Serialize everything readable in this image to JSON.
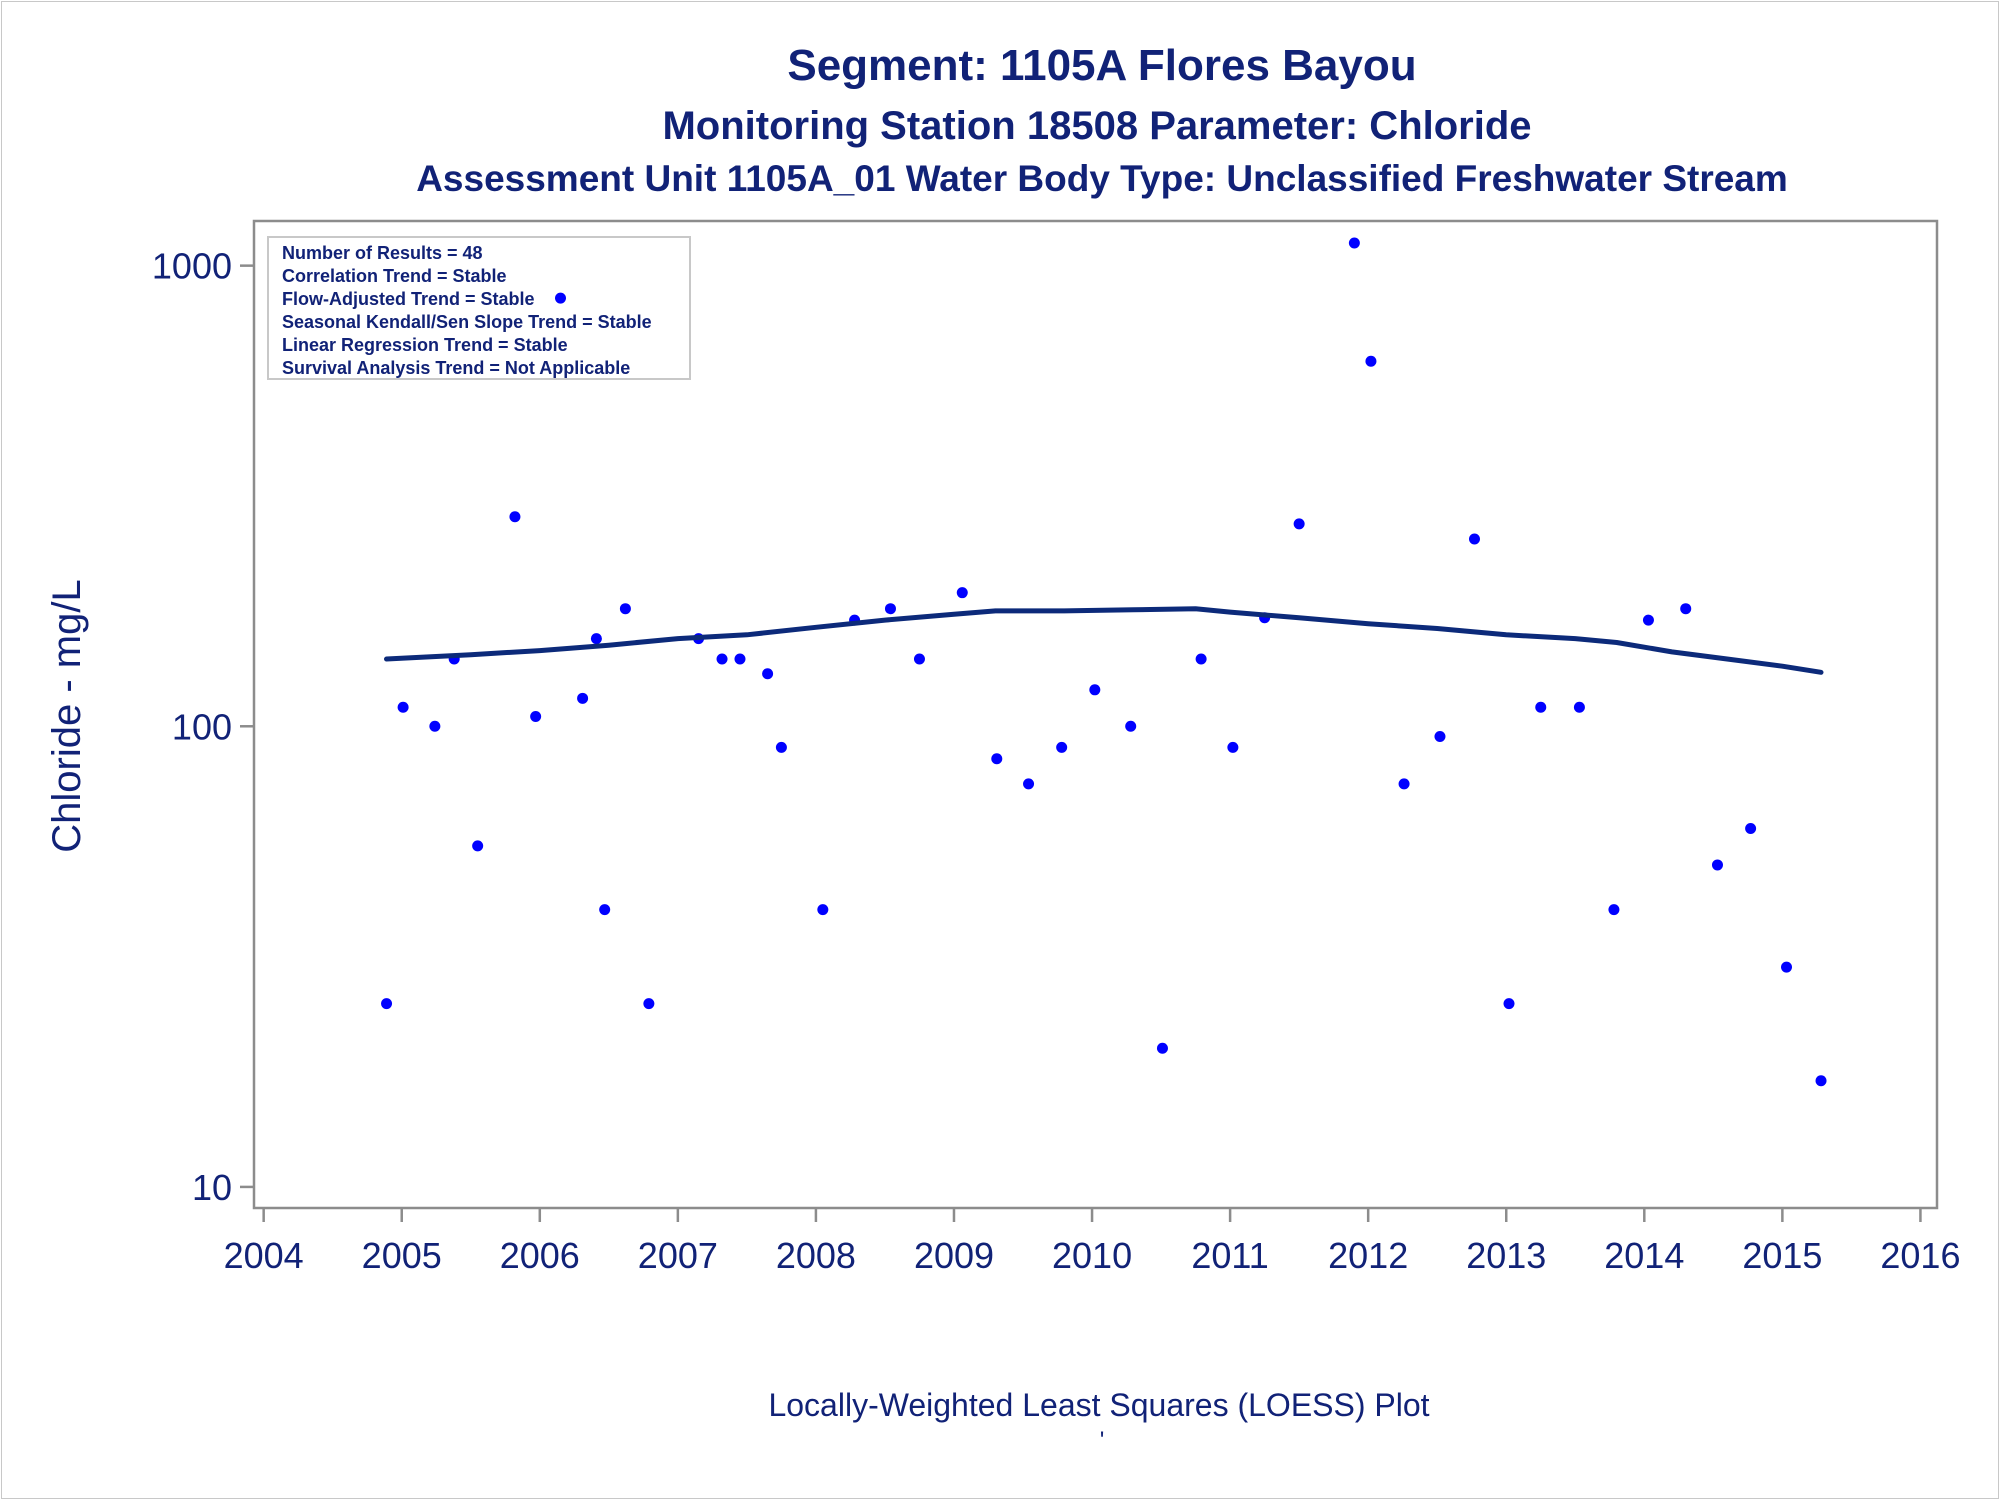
{
  "colors": {
    "text": "#112277",
    "points": "#0000ff",
    "loess": "#0c2a7a",
    "axis": "#8c8c8c",
    "inset_border": "#c8c8c8"
  },
  "chart_data": {
    "type": "scatter",
    "title": "Segment: 1105A  Flores Bayou",
    "subtitle": "Monitoring Station 18508 Parameter: Chloride",
    "subtitle2": "Assessment Unit 1105A_01   Water Body Type: Unclassified Freshwater Stream",
    "ylabel": "Chloride - mg/L",
    "xlabel": "",
    "footnote": "Locally-Weighted Least Squares (LOESS) Plot",
    "footnote_mark": "'",
    "yscale": "log",
    "ylim": [
      9,
      1250
    ],
    "xlim": [
      2003.93,
      2016.12
    ],
    "y_ticks": [
      10,
      100,
      1000
    ],
    "y_tick_labels": [
      "10",
      "100",
      "1000"
    ],
    "x_ticks": [
      2004,
      2005,
      2006,
      2007,
      2008,
      2009,
      2010,
      2011,
      2012,
      2013,
      2014,
      2015,
      2016
    ],
    "x_tick_labels": [
      "2004",
      "2005",
      "2006",
      "2007",
      "2008",
      "2009",
      "2010",
      "2011",
      "2012",
      "2013",
      "2014",
      "2015",
      "2016"
    ],
    "grid": false,
    "legend_placement": "top-left",
    "inset_lines": [
      "Number of Results = 48",
      "Correlation Trend = Stable",
      "Flow-Adjusted Trend = Stable",
      "Seasonal Kendall/Sen Slope Trend = Stable",
      "Linear Regression Trend = Stable",
      "Survival Analysis Trend = Not Applicable"
    ],
    "series": [
      {
        "type": "scatter",
        "points": [
          {
            "x": 2004.89,
            "y": 25
          },
          {
            "x": 2005.01,
            "y": 110
          },
          {
            "x": 2005.24,
            "y": 100
          },
          {
            "x": 2005.38,
            "y": 140
          },
          {
            "x": 2005.55,
            "y": 55
          },
          {
            "x": 2005.82,
            "y": 285
          },
          {
            "x": 2005.97,
            "y": 105
          },
          {
            "x": 2006.15,
            "y": 850
          },
          {
            "x": 2006.31,
            "y": 115
          },
          {
            "x": 2006.41,
            "y": 155
          },
          {
            "x": 2006.47,
            "y": 40
          },
          {
            "x": 2006.62,
            "y": 180
          },
          {
            "x": 2006.79,
            "y": 25
          },
          {
            "x": 2007.15,
            "y": 155
          },
          {
            "x": 2007.32,
            "y": 140
          },
          {
            "x": 2007.45,
            "y": 140
          },
          {
            "x": 2007.65,
            "y": 130
          },
          {
            "x": 2007.75,
            "y": 90
          },
          {
            "x": 2008.05,
            "y": 40
          },
          {
            "x": 2008.28,
            "y": 170
          },
          {
            "x": 2008.54,
            "y": 180
          },
          {
            "x": 2008.75,
            "y": 140
          },
          {
            "x": 2009.06,
            "y": 195
          },
          {
            "x": 2009.31,
            "y": 85
          },
          {
            "x": 2009.54,
            "y": 75
          },
          {
            "x": 2009.78,
            "y": 90
          },
          {
            "x": 2010.02,
            "y": 120
          },
          {
            "x": 2010.28,
            "y": 100
          },
          {
            "x": 2010.51,
            "y": 20
          },
          {
            "x": 2010.79,
            "y": 140
          },
          {
            "x": 2011.02,
            "y": 90
          },
          {
            "x": 2011.25,
            "y": 172
          },
          {
            "x": 2011.5,
            "y": 275
          },
          {
            "x": 2011.9,
            "y": 1120
          },
          {
            "x": 2012.02,
            "y": 620
          },
          {
            "x": 2012.26,
            "y": 75
          },
          {
            "x": 2012.52,
            "y": 95
          },
          {
            "x": 2012.77,
            "y": 255
          },
          {
            "x": 2013.02,
            "y": 25
          },
          {
            "x": 2013.25,
            "y": 110
          },
          {
            "x": 2013.53,
            "y": 110
          },
          {
            "x": 2013.78,
            "y": 40
          },
          {
            "x": 2014.03,
            "y": 170
          },
          {
            "x": 2014.3,
            "y": 180
          },
          {
            "x": 2014.53,
            "y": 50
          },
          {
            "x": 2014.77,
            "y": 60
          },
          {
            "x": 2015.03,
            "y": 30
          },
          {
            "x": 2015.28,
            "y": 17
          }
        ]
      },
      {
        "type": "line",
        "points": [
          {
            "x": 2004.89,
            "y": 140
          },
          {
            "x": 2005.5,
            "y": 143
          },
          {
            "x": 2006.0,
            "y": 146
          },
          {
            "x": 2006.5,
            "y": 150
          },
          {
            "x": 2007.0,
            "y": 155
          },
          {
            "x": 2007.5,
            "y": 158
          },
          {
            "x": 2008.0,
            "y": 164
          },
          {
            "x": 2008.5,
            "y": 170
          },
          {
            "x": 2009.0,
            "y": 175
          },
          {
            "x": 2009.3,
            "y": 178
          },
          {
            "x": 2009.8,
            "y": 178
          },
          {
            "x": 2010.3,
            "y": 179
          },
          {
            "x": 2010.75,
            "y": 180
          },
          {
            "x": 2011.0,
            "y": 177
          },
          {
            "x": 2011.5,
            "y": 172
          },
          {
            "x": 2012.0,
            "y": 167
          },
          {
            "x": 2012.5,
            "y": 163
          },
          {
            "x": 2013.0,
            "y": 158
          },
          {
            "x": 2013.5,
            "y": 155
          },
          {
            "x": 2013.8,
            "y": 152
          },
          {
            "x": 2014.2,
            "y": 145
          },
          {
            "x": 2014.6,
            "y": 140
          },
          {
            "x": 2015.0,
            "y": 135
          },
          {
            "x": 2015.28,
            "y": 131
          }
        ]
      }
    ]
  }
}
